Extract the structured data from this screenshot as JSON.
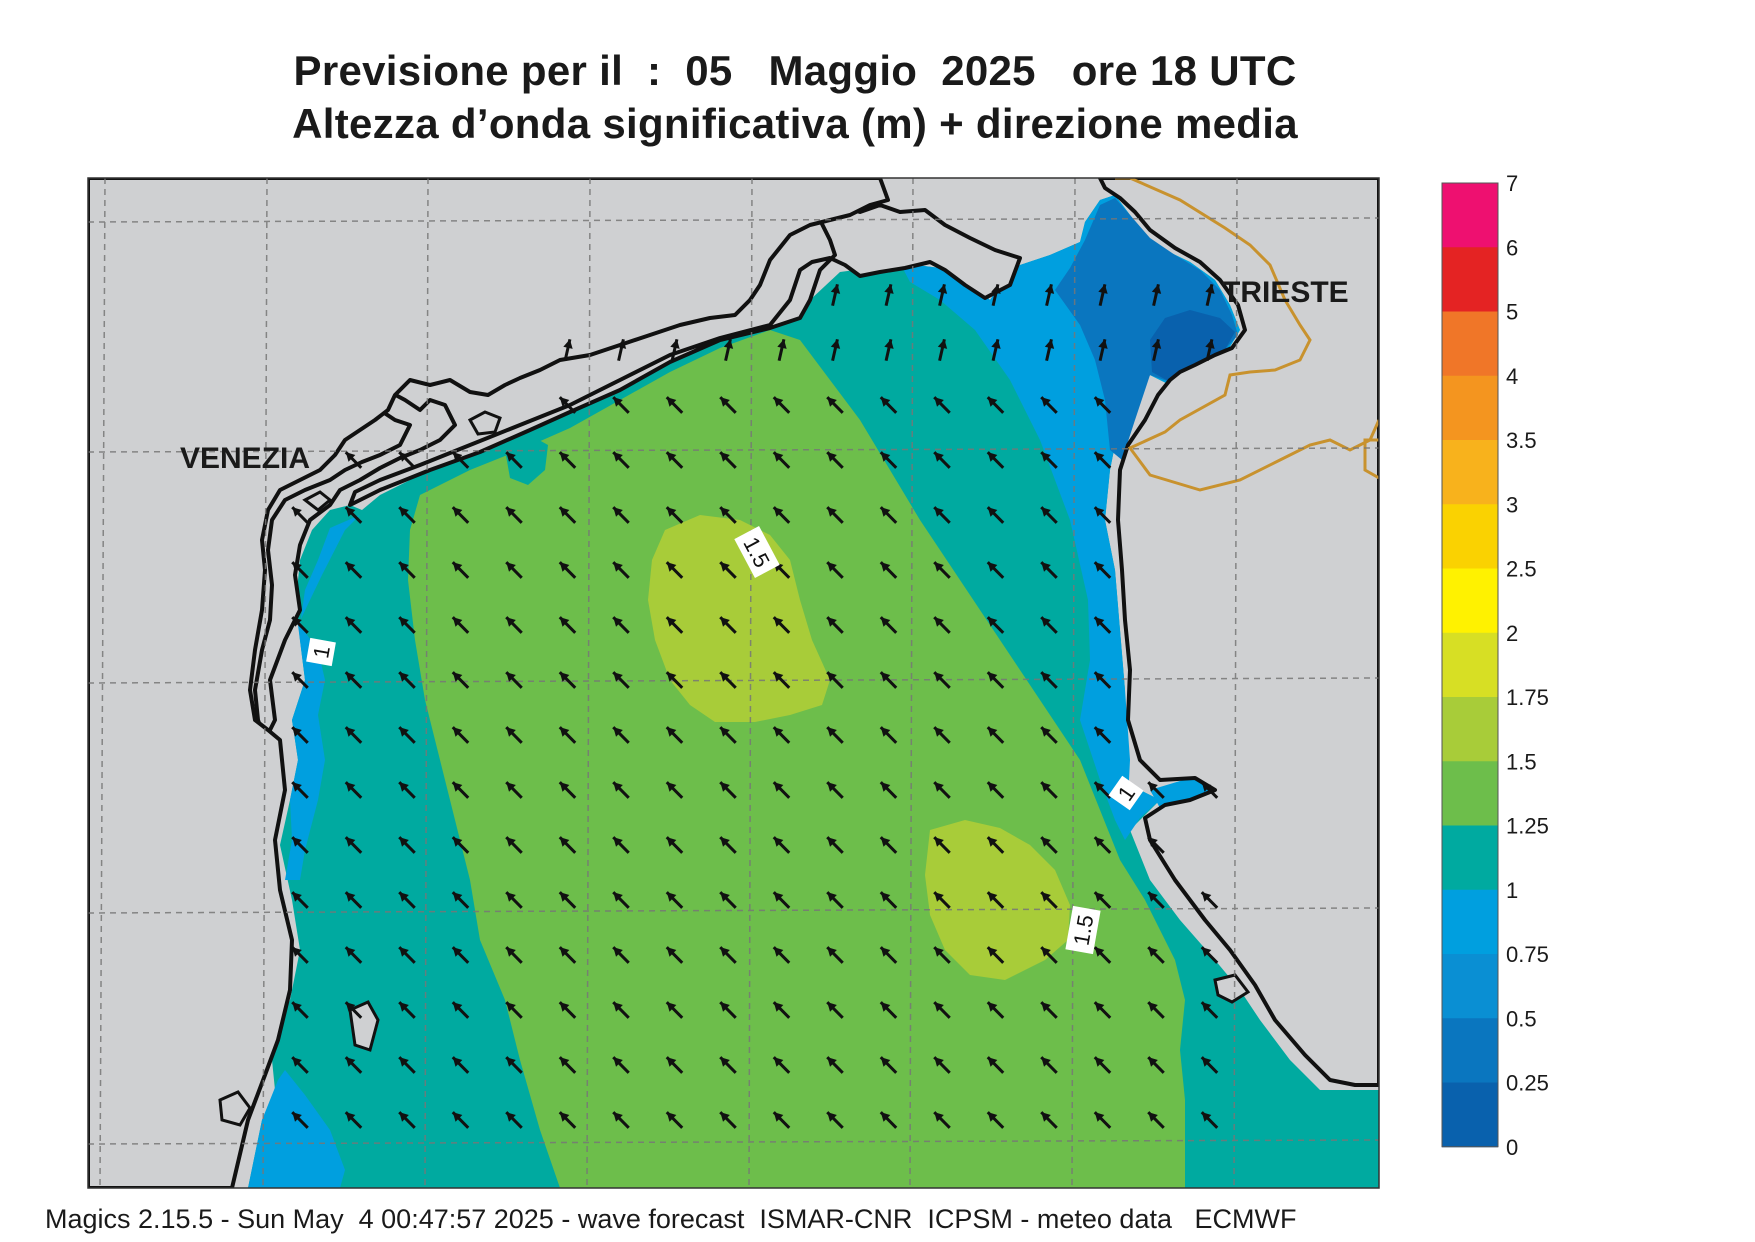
{
  "title": {
    "line1": "Previsione per il  :  05   Maggio  2025   ore 18 UTC",
    "line2": "Altezza d’onda significativa (m) + direzione media"
  },
  "map": {
    "cities": {
      "venezia": "VENEZIA",
      "trieste": "TRIESTE"
    },
    "contour_labels": {
      "north": "1.5",
      "east": "1.5",
      "west": "1",
      "coast": "1"
    },
    "wave_direction": "north-west",
    "land_color": "#cfd0d2",
    "coast_color": "#111111",
    "border_color": "#c8922e"
  },
  "colorbar": {
    "labels": [
      "7",
      "6",
      "5",
      "4",
      "3.5",
      "3",
      "2.5",
      "2",
      "1.75",
      "1.5",
      "1.25",
      "1",
      "0.75",
      "0.5",
      "0.25",
      "0"
    ],
    "colors": [
      "#ee1070",
      "#e42323",
      "#f07628",
      "#f4951f",
      "#f8b21c",
      "#fad201",
      "#fff200",
      "#d7df24",
      "#a8cc39",
      "#6dbe4b",
      "#00aaa0",
      "#009fdf",
      "#0a8fd3",
      "#0a76bf",
      "#0961ad"
    ]
  },
  "footer": "Magics 2.15.5 - Sun May  4 00:47:57 2025 - wave forecast  ISMAR-CNR  ICPSM - meteo data   ECMWF"
}
